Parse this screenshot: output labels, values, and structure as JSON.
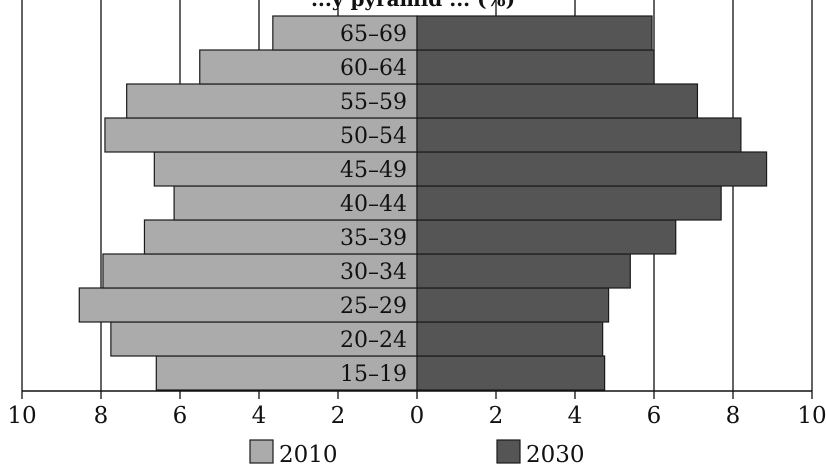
{
  "chart_data": {
    "type": "bar",
    "orientation": "horizontal",
    "subtype": "population-pyramid",
    "title": "...y pyramid ... (%)",
    "categories": [
      "15–19",
      "20–24",
      "25–29",
      "30–34",
      "35–39",
      "40–44",
      "45–49",
      "50–54",
      "55–59",
      "60–64",
      "65–69"
    ],
    "series": [
      {
        "name": "2010",
        "side": "left",
        "color": "#ababab",
        "values": [
          6.6,
          7.75,
          8.55,
          7.95,
          6.9,
          6.15,
          6.65,
          7.9,
          7.35,
          5.5,
          3.65
        ]
      },
      {
        "name": "2030",
        "side": "right",
        "color": "#555555",
        "values": [
          4.75,
          4.7,
          4.85,
          5.4,
          6.55,
          7.7,
          8.85,
          8.2,
          7.1,
          6.0,
          5.95
        ]
      }
    ],
    "xlim": [
      -10,
      10
    ],
    "x_ticks": [
      -10,
      -8,
      -6,
      -4,
      -2,
      0,
      2,
      4,
      6,
      8,
      10
    ],
    "x_tick_labels": [
      "10",
      "8",
      "6",
      "4",
      "2",
      "0",
      "2",
      "4",
      "6",
      "8",
      "10"
    ],
    "grid": "vertical",
    "legend": "bottom",
    "xlabel": "",
    "ylabel": ""
  },
  "legend": {
    "items": [
      {
        "label": "2010",
        "color": "#ababab"
      },
      {
        "label": "2030",
        "color": "#555555"
      }
    ]
  }
}
